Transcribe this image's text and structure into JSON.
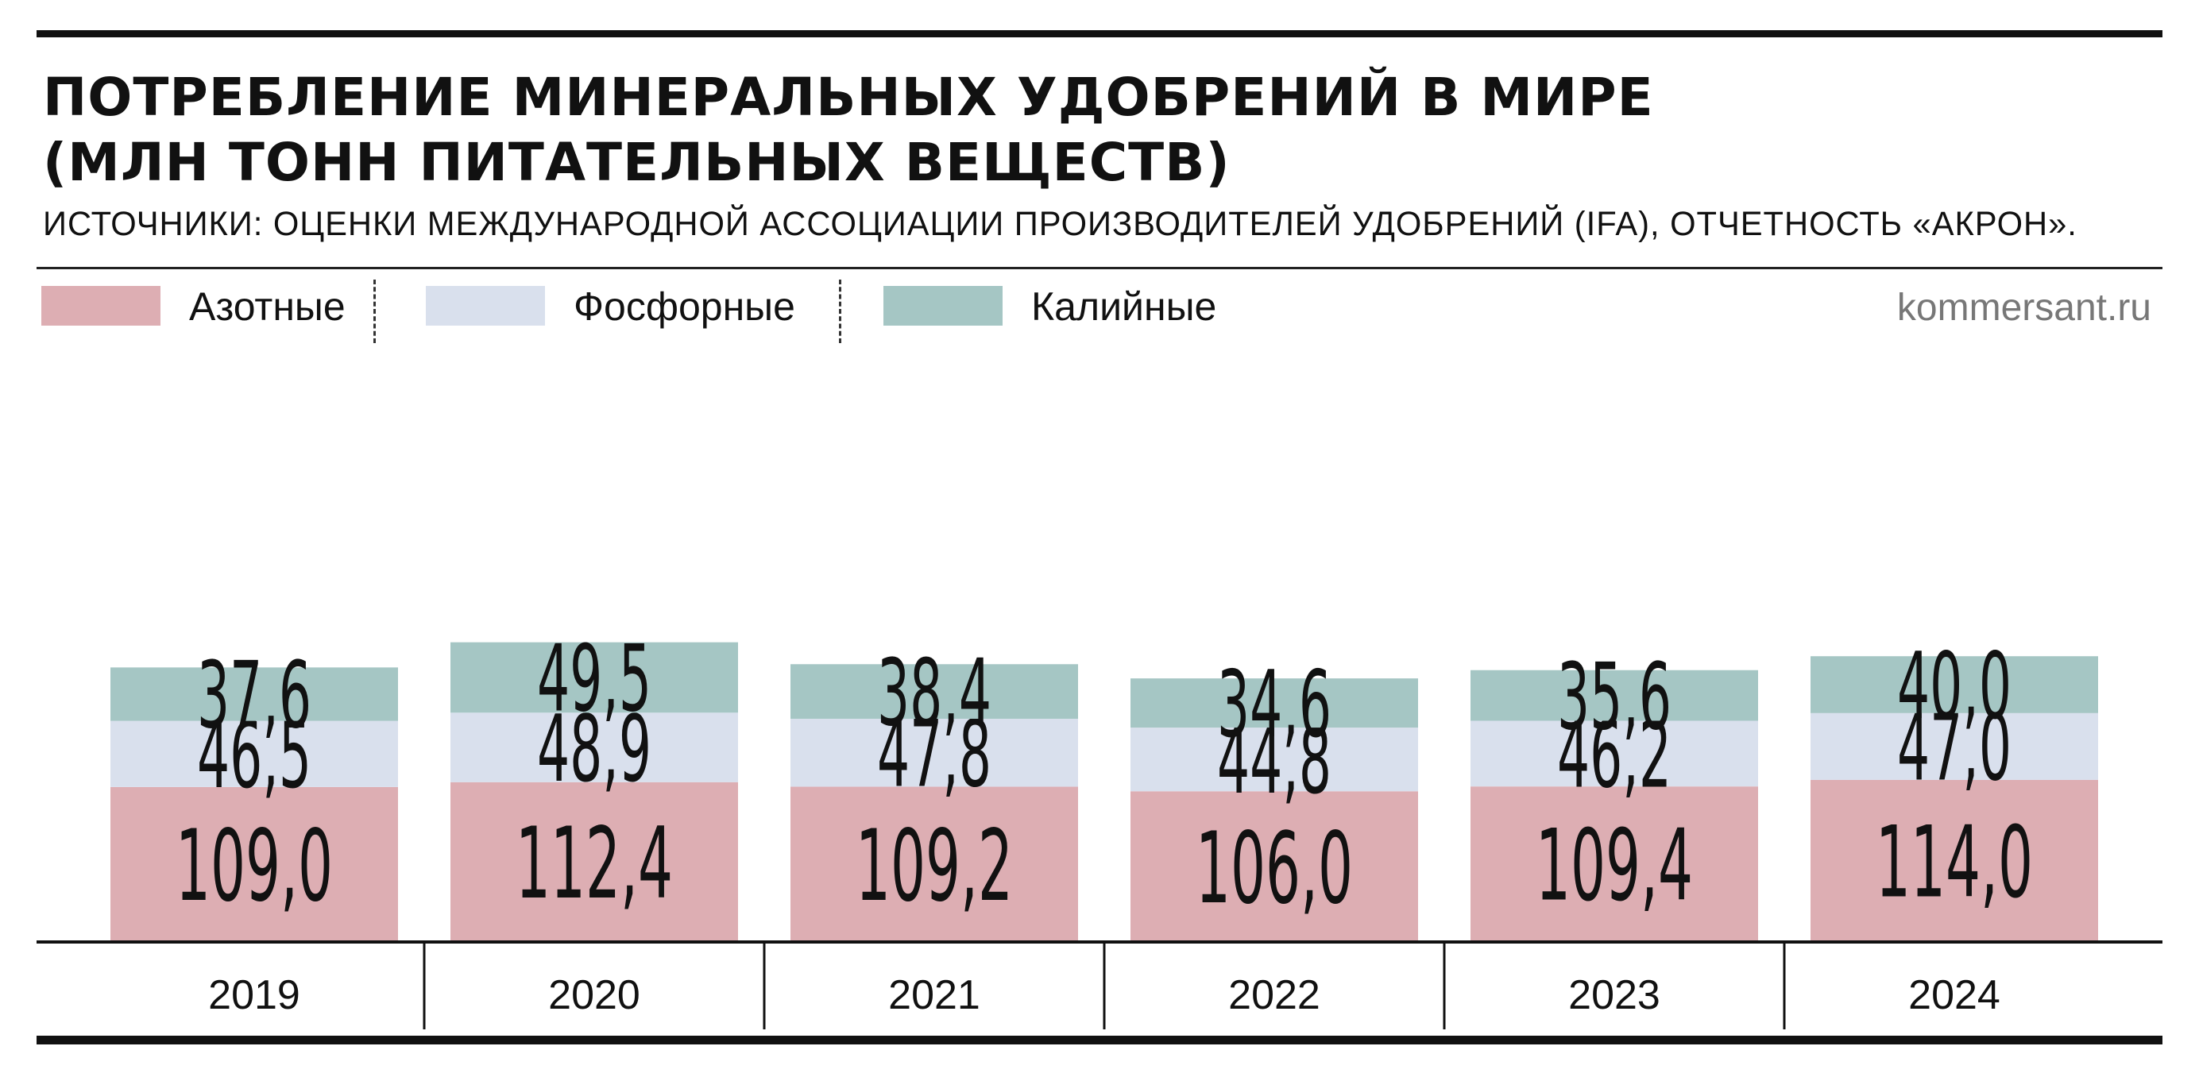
{
  "header": {
    "title_line1": "ПОТРЕБЛЕНИЕ МИНЕРАЛЬНЫХ УДОБРЕНИЙ В МИРЕ",
    "title_line2": "(МЛН ТОНН ПИТАТЕЛЬНЫХ ВЕЩЕСТВ)",
    "subtitle": "ИСТОЧНИКИ: ОЦЕНКИ МЕЖДУНАРОДНОЙ АССОЦИАЦИИ ПРОИЗВОДИТЕЛЕЙ УДОБРЕНИЙ (IFA), ОТЧЕТНОСТЬ «АКРОН».",
    "credit": "kommersant.ru"
  },
  "legend": [
    {
      "label": "Азотные",
      "color": "#ddaeb3"
    },
    {
      "label": "Фосфорные",
      "color": "#d9e0ed"
    },
    {
      "label": "Калийные",
      "color": "#a5c6c4"
    }
  ],
  "chart_data": {
    "type": "bar",
    "stacked": true,
    "categories": [
      "2019",
      "2020",
      "2021",
      "2022",
      "2023",
      "2024"
    ],
    "series": [
      {
        "name": "Азотные",
        "color": "#ddaeb3",
        "values": [
          109.0,
          112.4,
          109.2,
          106.0,
          109.4,
          114.0
        ],
        "labels": [
          "109,0",
          "112,4",
          "109,2",
          "106,0",
          "109,4",
          "114,0"
        ]
      },
      {
        "name": "Фосфорные",
        "color": "#d9e0ed",
        "values": [
          46.5,
          48.9,
          47.8,
          44.8,
          46.2,
          47.0
        ],
        "labels": [
          "46,5",
          "48,9",
          "47,8",
          "44,8",
          "46,2",
          "47,0"
        ]
      },
      {
        "name": "Калийные",
        "color": "#a5c6c4",
        "values": [
          37.6,
          49.5,
          38.4,
          34.6,
          35.6,
          40.0
        ],
        "labels": [
          "37,6",
          "49,5",
          "38,4",
          "34,6",
          "35,6",
          "40,0"
        ]
      }
    ],
    "title": "ПОТРЕБЛЕНИЕ МИНЕРАЛЬНЫХ УДОБРЕНИЙ В МИРЕ (МЛН ТОНН ПИТАТЕЛЬНЫХ ВЕЩЕСТВ)",
    "legend_position": "top-left",
    "grid": false
  }
}
